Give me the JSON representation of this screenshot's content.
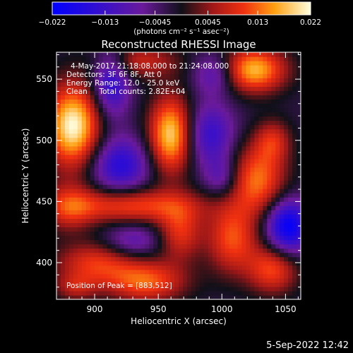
{
  "chart_data": {
    "type": "heatmap",
    "title": "Reconstructed RHESSI Image",
    "xlabel": "Heliocentric X (arcsec)",
    "ylabel": "Heliocentric Y (arcsec)",
    "xlim": [
      870,
      1062
    ],
    "ylim": [
      370,
      572
    ],
    "x_ticks": [
      900,
      950,
      1000,
      1050
    ],
    "y_ticks": [
      400,
      450,
      500,
      550
    ],
    "colorbar": {
      "range": [
        -0.022,
        0.022
      ],
      "ticks": [
        "-0.022",
        "-0.013",
        "-0.0045",
        "0.0045",
        "0.013",
        "0.022"
      ],
      "unit_label": "(photons cm⁻² s⁻¹ asec⁻²)"
    },
    "annotations": [
      "4-May-2017 21:18:08.000 to 21:24:08.000",
      "Detectors: 3F 6F 8F, Att 0",
      "Energy Range: 12.0 - 25.0 keV",
      "Clean     Total counts: 2.82E+04"
    ],
    "peak_label": "Position of Peak = [883,512]",
    "peak": {
      "x": 883,
      "y": 512
    },
    "sources": [
      {
        "x": 883,
        "y": 512,
        "sx": 15,
        "sy": 24,
        "v": 0.024
      },
      {
        "x": 960,
        "y": 505,
        "sx": 12,
        "sy": 22,
        "v": 0.022
      },
      {
        "x": 1025,
        "y": 558,
        "sx": 18,
        "sy": 13,
        "v": 0.02
      },
      {
        "x": 935,
        "y": 565,
        "sx": 22,
        "sy": 10,
        "v": 0.01
      },
      {
        "x": 1040,
        "y": 500,
        "sx": 10,
        "sy": 12,
        "v": 0.01
      },
      {
        "x": 1028,
        "y": 468,
        "sx": 16,
        "sy": 20,
        "v": 0.016
      },
      {
        "x": 1008,
        "y": 420,
        "sx": 14,
        "sy": 20,
        "v": 0.014
      },
      {
        "x": 1040,
        "y": 395,
        "sx": 14,
        "sy": 14,
        "v": 0.014
      },
      {
        "x": 930,
        "y": 447,
        "sx": 38,
        "sy": 10,
        "v": 0.014
      },
      {
        "x": 880,
        "y": 445,
        "sx": 14,
        "sy": 14,
        "v": 0.01
      },
      {
        "x": 967,
        "y": 425,
        "sx": 12,
        "sy": 16,
        "v": 0.012
      },
      {
        "x": 900,
        "y": 400,
        "sx": 22,
        "sy": 12,
        "v": 0.012
      },
      {
        "x": 940,
        "y": 385,
        "sx": 22,
        "sy": 12,
        "v": 0.015
      },
      {
        "x": 885,
        "y": 380,
        "sx": 12,
        "sy": 8,
        "v": 0.008
      },
      {
        "x": 913,
        "y": 548,
        "sx": 10,
        "sy": 20,
        "v": -0.014
      },
      {
        "x": 920,
        "y": 480,
        "sx": 16,
        "sy": 16,
        "v": -0.014
      },
      {
        "x": 995,
        "y": 555,
        "sx": 12,
        "sy": 12,
        "v": -0.01
      },
      {
        "x": 990,
        "y": 505,
        "sx": 14,
        "sy": 18,
        "v": -0.012
      },
      {
        "x": 1052,
        "y": 430,
        "sx": 12,
        "sy": 16,
        "v": -0.02
      },
      {
        "x": 1000,
        "y": 470,
        "sx": 10,
        "sy": 12,
        "v": -0.008
      },
      {
        "x": 930,
        "y": 418,
        "sx": 16,
        "sy": 10,
        "v": -0.008
      }
    ]
  },
  "footer": {
    "timestamp": "5-Sep-2022 12:42"
  }
}
